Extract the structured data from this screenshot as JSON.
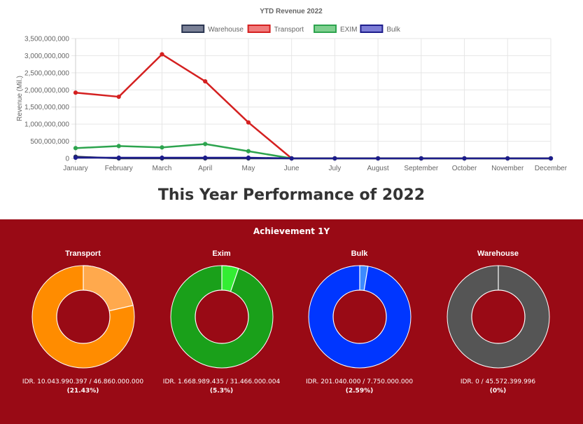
{
  "chart_data": [
    {
      "type": "line",
      "title": "YTD Revenue 2022",
      "ylabel": "Revenue (Mil.)",
      "xlabel": "",
      "categories": [
        "January",
        "February",
        "March",
        "April",
        "May",
        "June",
        "July",
        "August",
        "September",
        "October",
        "November",
        "December"
      ],
      "ylim": [
        0,
        3500000000
      ],
      "yticks": [
        0,
        500000000,
        1000000000,
        1500000000,
        2000000000,
        2500000000,
        3000000000,
        3500000000
      ],
      "ytick_labels": [
        "0",
        "500,000,000",
        "1,000,000,000",
        "1,500,000,000",
        "2,000,000,000",
        "2,500,000,000",
        "3,000,000,000",
        "3,500,000,000"
      ],
      "grid": true,
      "legend_position": "top",
      "series": [
        {
          "name": "Warehouse",
          "color": "#2a3551",
          "fill": "#7a8096",
          "values": [
            50000000,
            0,
            0,
            0,
            0,
            0,
            0,
            0,
            0,
            0,
            0,
            0
          ]
        },
        {
          "name": "Transport",
          "color": "#d42020",
          "fill": "#f07c7c",
          "values": [
            1920000000,
            1800000000,
            3040000000,
            2250000000,
            1050000000,
            0,
            0,
            0,
            0,
            0,
            0,
            0
          ]
        },
        {
          "name": "EXIM",
          "color": "#2da44e",
          "fill": "#7fcf8f",
          "values": [
            300000000,
            360000000,
            320000000,
            420000000,
            210000000,
            0,
            0,
            0,
            0,
            0,
            0,
            0
          ]
        },
        {
          "name": "Bulk",
          "color": "#1d1d8c",
          "fill": "#7d7dd6",
          "values": [
            20000000,
            20000000,
            20000000,
            20000000,
            20000000,
            0,
            0,
            0,
            0,
            0,
            0,
            0
          ]
        }
      ]
    },
    {
      "type": "pie",
      "title": "Achievement 1Y",
      "donuts": [
        {
          "name": "Transport",
          "percent": 21.43,
          "achieved_color": "#ffa94d",
          "remaining_color": "#ff8c00",
          "amount_text": "IDR. 10.043.990.397 / 46.860.000.000",
          "percent_text": "(21.43%)"
        },
        {
          "name": "Exim",
          "percent": 5.3,
          "achieved_color": "#33ee33",
          "remaining_color": "#1aa01a",
          "amount_text": "IDR. 1.668.989.435 / 31.466.000.004",
          "percent_text": "(5.3%)"
        },
        {
          "name": "Bulk",
          "percent": 2.59,
          "achieved_color": "#3d8bff",
          "remaining_color": "#0036ff",
          "amount_text": "IDR. 201.040.000 / 7.750.000.000",
          "percent_text": "(2.59%)"
        },
        {
          "name": "Warehouse",
          "percent": 0,
          "achieved_color": "#777777",
          "remaining_color": "#555555",
          "amount_text": "IDR. 0 / 45.572.399.996",
          "percent_text": "(0%)"
        }
      ]
    }
  ],
  "performance_title": "This Year Performance of 2022"
}
